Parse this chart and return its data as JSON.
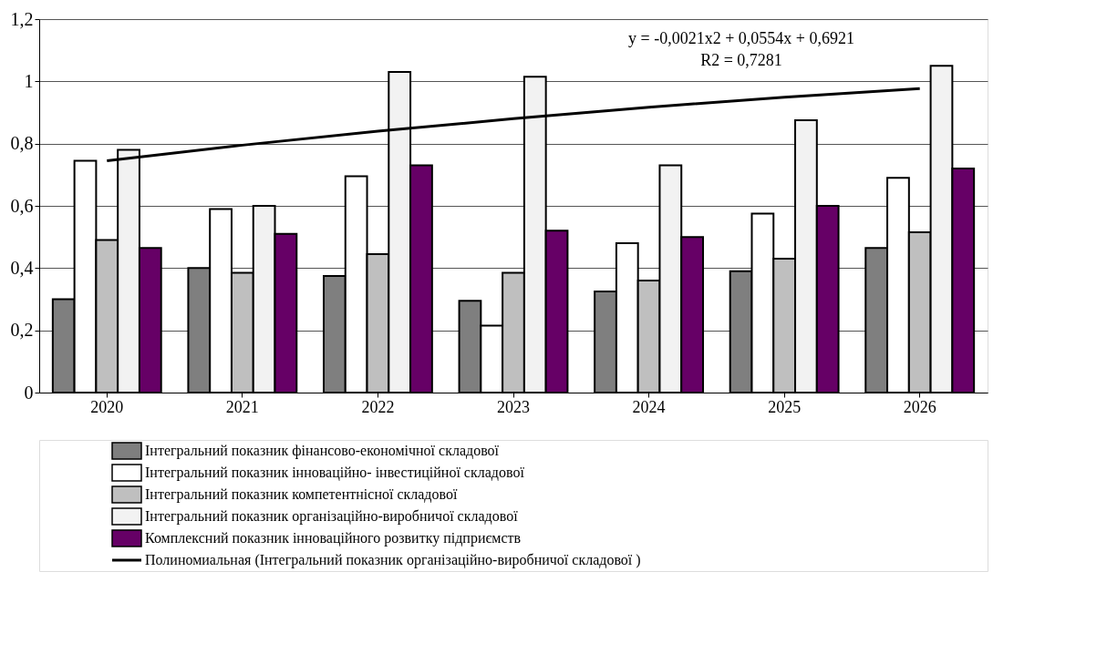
{
  "chart_data": {
    "type": "bar",
    "categories": [
      "2020",
      "2021",
      "2022",
      "2023",
      "2024",
      "2025",
      "2026"
    ],
    "series": [
      {
        "name": "Інтегральний показник фінансово-економічної складової",
        "color": "#7f7f7f",
        "values": [
          0.3,
          0.4,
          0.375,
          0.295,
          0.325,
          0.39,
          0.465
        ]
      },
      {
        "name": "Інтегральний показник інноваційно- інвестиційної складової",
        "color": "#ffffff",
        "values": [
          0.745,
          0.59,
          0.695,
          0.215,
          0.48,
          0.575,
          0.69
        ]
      },
      {
        "name": "Інтегральний показник компетентнісної складової",
        "color": "#bfbfbf",
        "values": [
          0.49,
          0.385,
          0.445,
          0.385,
          0.36,
          0.43,
          0.515
        ]
      },
      {
        "name": "Інтегральний показник організаційно-виробничої складової",
        "color": "#f2f2f2",
        "values": [
          0.78,
          0.6,
          1.03,
          1.015,
          0.73,
          0.875,
          1.05
        ]
      },
      {
        "name": "Комплексний показник інноваційного розвитку підприємств",
        "color": "#660066",
        "values": [
          0.465,
          0.51,
          0.73,
          0.52,
          0.5,
          0.6,
          0.72
        ]
      },
      {
        "name": "Полиномиальная (Інтегральний показник організаційно-виробничої складової )",
        "type": "line",
        "color": "#000000",
        "values": [
          0.745,
          0.795,
          0.84,
          0.88,
          0.917,
          0.949,
          0.977
        ]
      }
    ],
    "ylim": [
      0,
      1.2
    ],
    "yticks": [
      0,
      {
        "value": 0.2,
        "label": "0,2"
      },
      {
        "value": 0.4,
        "label": "0,4"
      },
      {
        "value": 0.6,
        "label": "0,6"
      },
      {
        "value": 0.8,
        "label": "0,8"
      },
      1,
      {
        "value": 1.2,
        "label": "1,2"
      }
    ],
    "annotations": [
      "y = -0,0021x2 + 0,0554x + 0,6921",
      "R2 = 0,7281"
    ],
    "grid": "y",
    "legend": "bottom",
    "line_style": "solid",
    "marker": "none"
  }
}
